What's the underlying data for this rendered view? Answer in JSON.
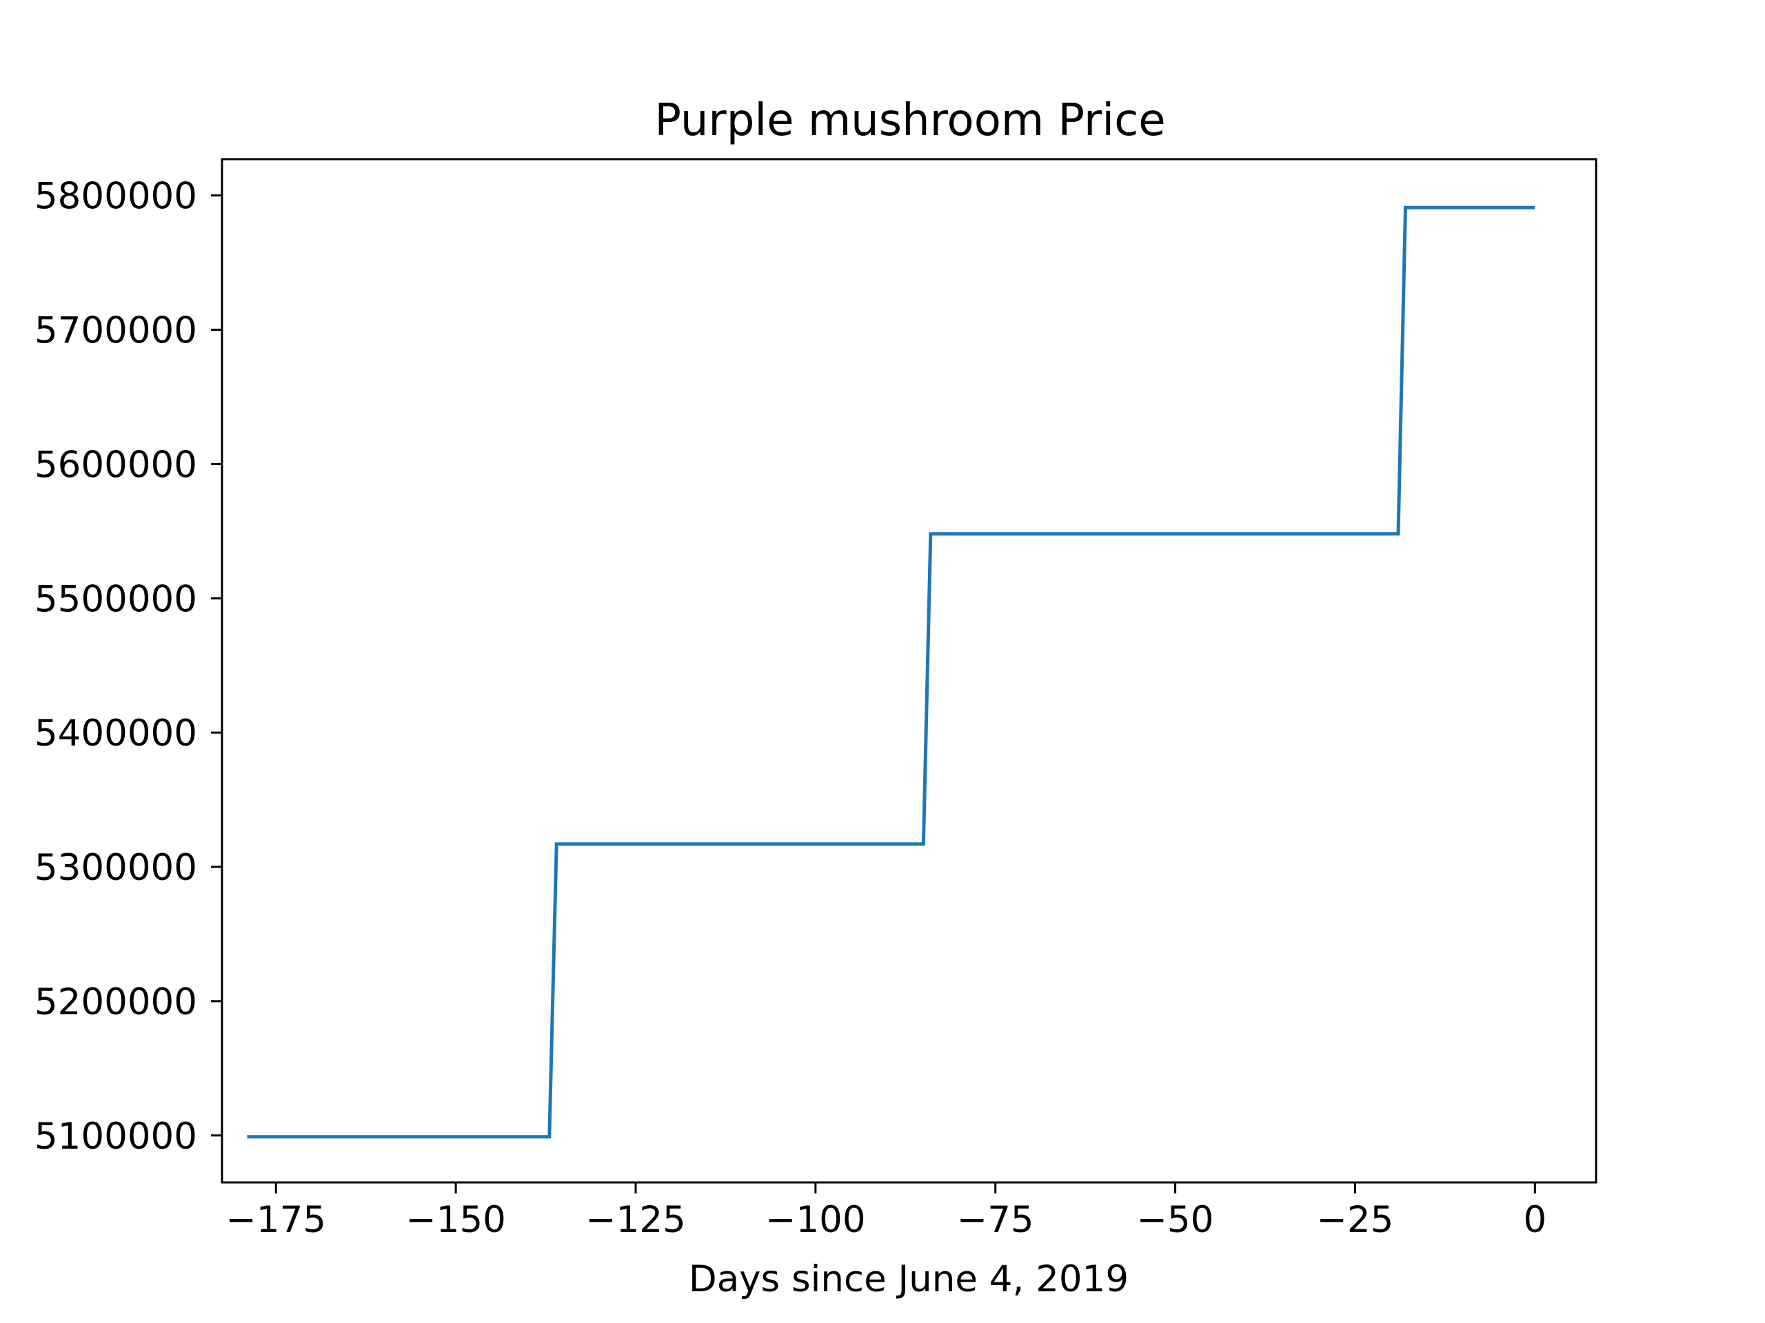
{
  "chart_data": {
    "type": "line",
    "title": "Purple mushroom Price",
    "xlabel": "Days since June 4, 2019",
    "ylabel": "",
    "xlim": [
      -182.5,
      8.5
    ],
    "ylim": [
      5065000,
      5827000
    ],
    "xticks": [
      -175,
      -150,
      -125,
      -100,
      -75,
      -50,
      -25,
      0
    ],
    "xtick_labels": [
      "−175",
      "−150",
      "−125",
      "−100",
      "−75",
      "−50",
      "−25",
      "0"
    ],
    "yticks": [
      5100000,
      5200000,
      5300000,
      5400000,
      5500000,
      5600000,
      5700000,
      5800000
    ],
    "ytick_labels": [
      "5100000",
      "5200000",
      "5300000",
      "5400000",
      "5500000",
      "5600000",
      "5700000",
      "5800000"
    ],
    "grid": false,
    "series": [
      {
        "color": "#1f77b4",
        "x": [
          -179,
          -137,
          -136,
          -85,
          -84,
          -19,
          -18,
          0
        ],
        "y": [
          5099000,
          5099000,
          5317000,
          5317000,
          5548000,
          5548000,
          5791000,
          5791000
        ]
      }
    ]
  }
}
